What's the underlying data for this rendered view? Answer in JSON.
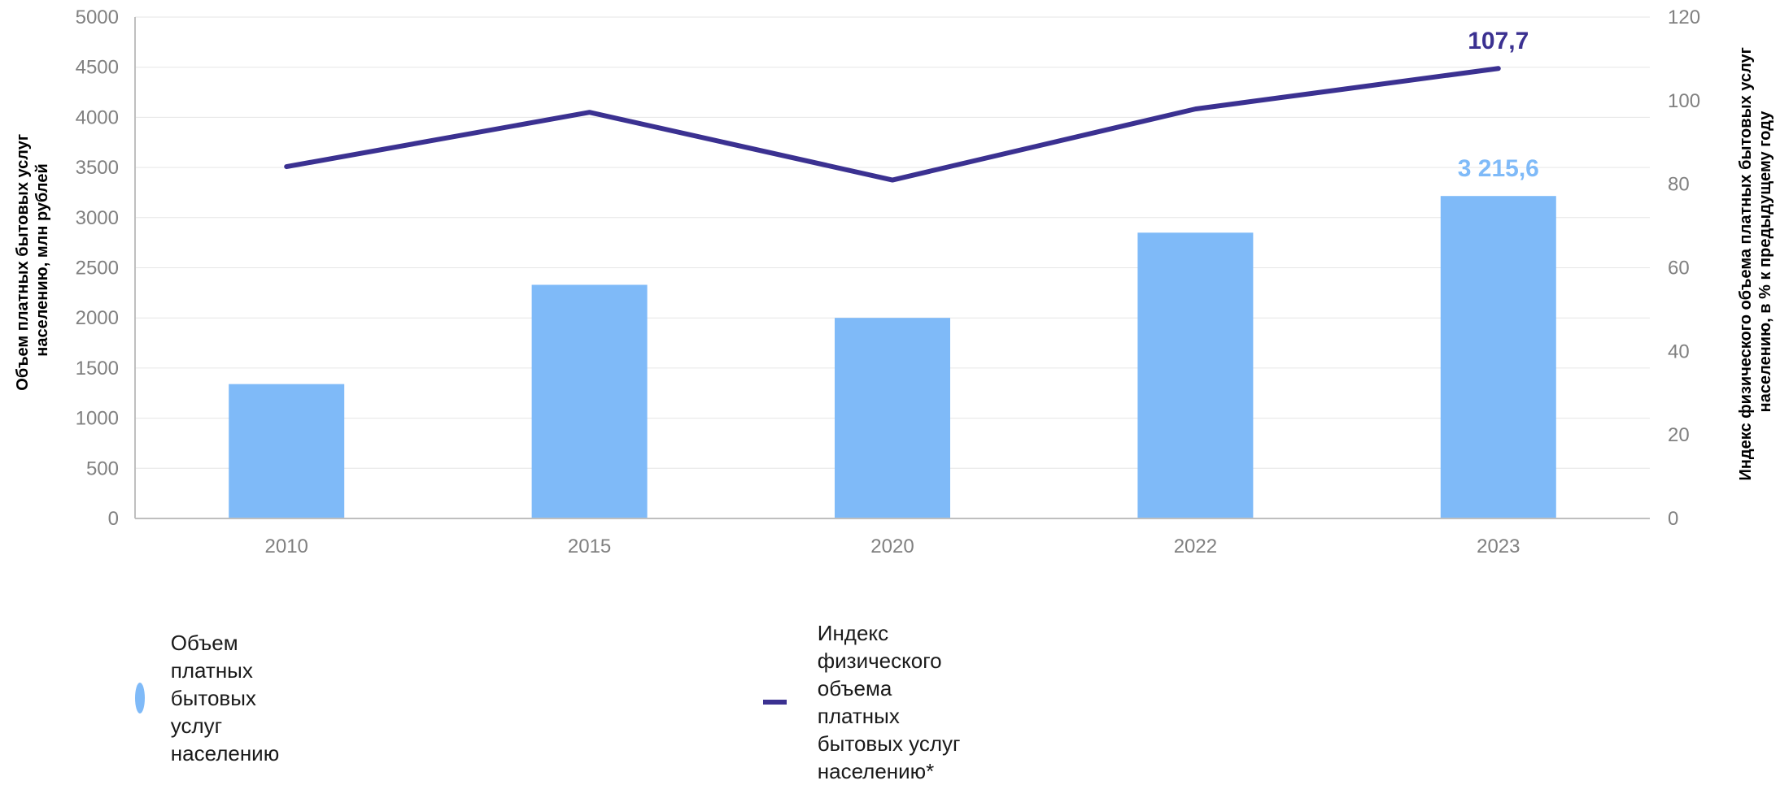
{
  "chart_data": {
    "type": "bar",
    "categories": [
      "2010",
      "2015",
      "2020",
      "2022",
      "2023"
    ],
    "series": [
      {
        "name": "Объем платных бытовых услуг населению",
        "type": "bar",
        "axis": "left",
        "values": [
          1340,
          2330,
          2000,
          2850,
          3215.6
        ],
        "color": "#7fbaf8"
      },
      {
        "name": "Индекс физического объема платных бытовых услуг населению*",
        "type": "line",
        "axis": "right",
        "values": [
          84.2,
          97.2,
          81.0,
          98.0,
          107.7
        ],
        "color": "#3b3191"
      }
    ],
    "data_labels": [
      {
        "series": 0,
        "index": 4,
        "text": "3 215,6"
      },
      {
        "series": 1,
        "index": 4,
        "text": "107,7"
      }
    ],
    "y_left": {
      "label_line1": "Объем платных бытовых услуг",
      "label_line2": "населению, млн рублей",
      "ylim": [
        0,
        5000
      ],
      "ticks": [
        "0",
        "500",
        "1000",
        "1500",
        "2000",
        "2500",
        "3000",
        "3500",
        "4000",
        "4500",
        "5000"
      ]
    },
    "y_right": {
      "label_line1": "Индекс физического объема платных бытовых услуг",
      "label_line2": "населению, в % к предыдущему году",
      "ylim": [
        0,
        120
      ],
      "ticks": [
        "0",
        "20",
        "40",
        "60",
        "80",
        "100",
        "120"
      ]
    },
    "grid": true,
    "legend_position": "bottom"
  },
  "legend": {
    "bar_label": "Объем платных бытовых услуг населению",
    "line_label_line1": "Индекс физического объема платных",
    "line_label_line2": "бытовых услуг населению*"
  },
  "colors": {
    "bar": "#7fbaf8",
    "line": "#3b3191",
    "bar_label": "#7fbaf8",
    "line_label": "#3b3191",
    "grid": "#e6e6e6",
    "axis": "#bfbfbf"
  }
}
